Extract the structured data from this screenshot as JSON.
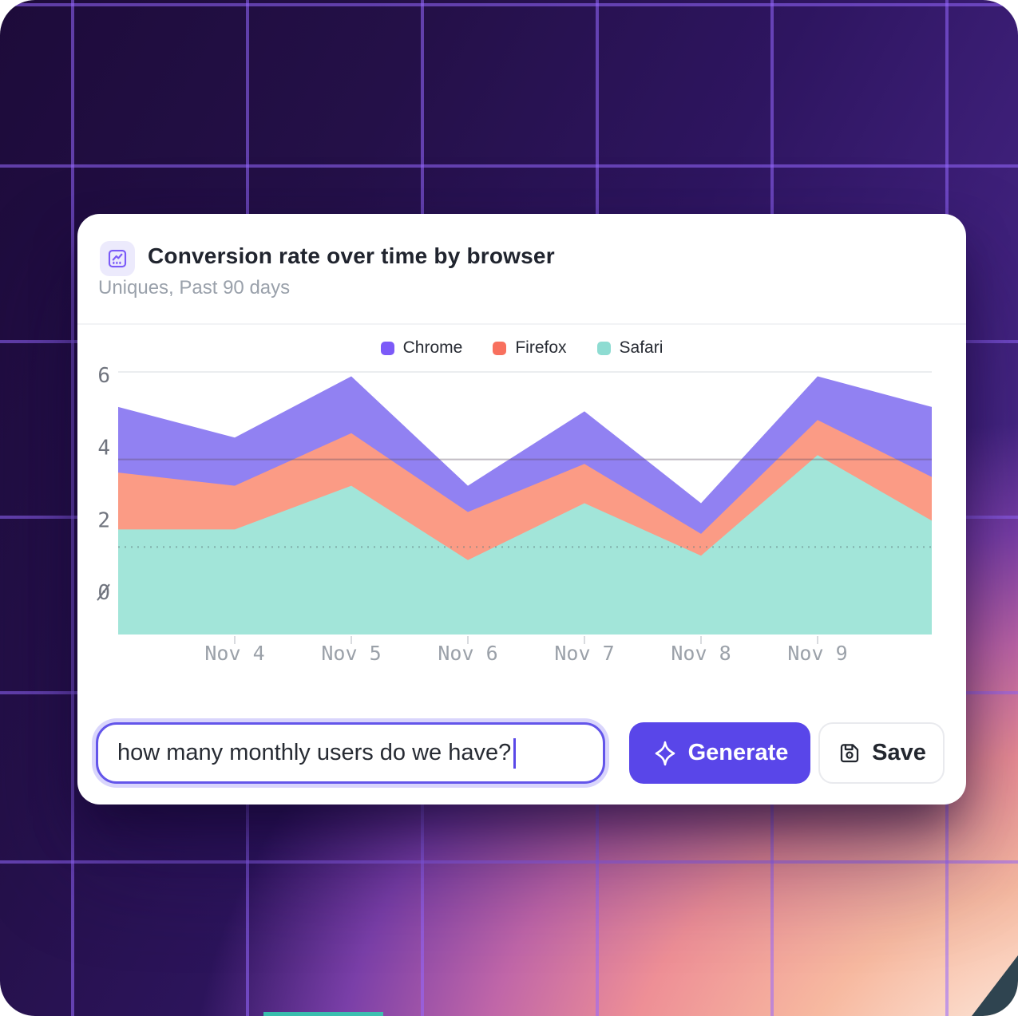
{
  "card": {
    "title": "Conversion rate over time by browser",
    "subtitle": "Uniques, Past 90 days"
  },
  "legend": [
    {
      "label": "Chrome",
      "color": "#7C5AF8"
    },
    {
      "label": "Firefox",
      "color": "#F8705E"
    },
    {
      "label": "Safari",
      "color": "#8EDCD2"
    }
  ],
  "chart_data": {
    "type": "area",
    "stacked": false,
    "title": "Conversion rate over time by browser",
    "x_labels": [
      "Nov 4",
      "Nov 5",
      "Nov 6",
      "Nov 7",
      "Nov 8",
      "Nov 9"
    ],
    "x_label_point_indices": [
      1,
      2,
      3,
      4,
      5,
      6
    ],
    "y_ticks": [
      "6",
      "4",
      "2",
      "0"
    ],
    "ylim": [
      0,
      6
    ],
    "grid": true,
    "legend_position": "top-center",
    "series": [
      {
        "name": "Chrome",
        "color": "#9181F2",
        "values": [
          5.2,
          4.5,
          5.9,
          3.4,
          5.1,
          3.0,
          5.9,
          5.2
        ]
      },
      {
        "name": "Firefox",
        "color": "#FB9B85",
        "values": [
          3.7,
          3.4,
          4.6,
          2.8,
          3.9,
          2.3,
          4.9,
          3.6
        ]
      },
      {
        "name": "Safari",
        "color": "#A2E5D9",
        "values": [
          2.4,
          2.4,
          3.4,
          1.7,
          3.0,
          1.8,
          4.1,
          2.6
        ]
      }
    ]
  },
  "prompt_bar": {
    "input_value": "how many monthly users do we have?",
    "generate_label": "Generate",
    "save_label": "Save"
  },
  "colors": {
    "accent": "#5946E9",
    "input_border": "#6355EA",
    "chip_bg": "#ECEAFC",
    "chip_icon": "#7A5AF8",
    "bg_dark": "#241048",
    "bg_glow": "#F7B9A0"
  }
}
